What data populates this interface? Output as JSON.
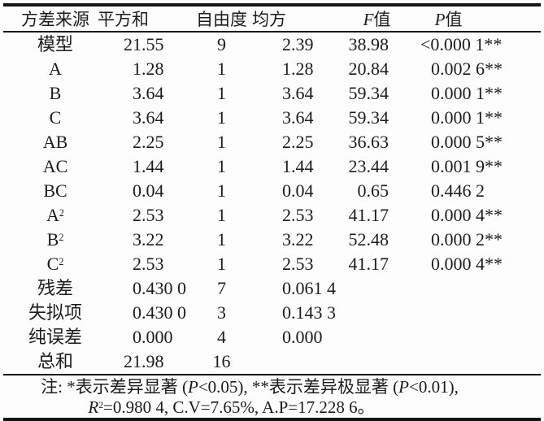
{
  "colors": {
    "ink": "#1c1c1c",
    "rule": "#141414",
    "bg": "#fdfdfd"
  },
  "table": {
    "headers": [
      {
        "id": "source",
        "runs": [
          {
            "t": "方差来源"
          }
        ]
      },
      {
        "id": "sum-of-squares",
        "runs": [
          {
            "t": "平方和"
          }
        ]
      },
      {
        "id": "degrees-freedom",
        "runs": [
          {
            "t": "自由度"
          }
        ]
      },
      {
        "id": "mean-square",
        "runs": [
          {
            "t": "均方"
          }
        ]
      },
      {
        "id": "f-value",
        "runs": [
          {
            "t": "F",
            "i": 1
          },
          {
            "t": "值"
          }
        ]
      },
      {
        "id": "p-value",
        "runs": [
          {
            "t": "P",
            "i": 1
          },
          {
            "t": "值"
          }
        ]
      }
    ],
    "rows": [
      {
        "source": "模型",
        "ss": "21.55",
        "df": "9",
        "ms": "2.39",
        "f": "38.98",
        "p": "<0.000 1**"
      },
      {
        "source": "A",
        "ss": "1.28",
        "df": "1",
        "ms": "1.28",
        "f": "20.84",
        "p": "0.002 6**"
      },
      {
        "source": "B",
        "ss": "3.64",
        "df": "1",
        "ms": "3.64",
        "f": "59.34",
        "p": "0.000 1**"
      },
      {
        "source": "C",
        "ss": "3.64",
        "df": "1",
        "ms": "3.64",
        "f": "59.34",
        "p": "0.000 1**"
      },
      {
        "source": "AB",
        "ss": "2.25",
        "df": "1",
        "ms": "2.25",
        "f": "36.63",
        "p": "0.000 5**"
      },
      {
        "source": "AC",
        "ss": "1.44",
        "df": "1",
        "ms": "1.44",
        "f": "23.44",
        "p": "0.001 9**"
      },
      {
        "source": "BC",
        "ss": "0.04",
        "df": "1",
        "ms": "0.04",
        "f": "0.65",
        "p": "0.446 2"
      },
      {
        "source": "A^2",
        "ss": "2.53",
        "df": "1",
        "ms": "2.53",
        "f": "41.17",
        "p": "0.000 4**"
      },
      {
        "source": "B^2",
        "ss": "3.22",
        "df": "1",
        "ms": "3.22",
        "f": "52.48",
        "p": "0.000 2**"
      },
      {
        "source": "C^2",
        "ss": "2.53",
        "df": "1",
        "ms": "2.53",
        "f": "41.17",
        "p": "0.000 4**"
      },
      {
        "source": "残差",
        "ss": "0.430 0",
        "df": "7",
        "ms": "0.061 4",
        "f": "",
        "p": ""
      },
      {
        "source": "失拟项",
        "ss": "0.430 0",
        "df": "3",
        "ms": "0.143 3",
        "f": "",
        "p": ""
      },
      {
        "source": "纯误差",
        "ss": "0.000",
        "df": "4",
        "ms": "0.000",
        "f": "",
        "p": ""
      },
      {
        "source": "总和",
        "ss": "21.98",
        "df": "16",
        "ms": "",
        "f": "",
        "p": ""
      }
    ]
  },
  "note": {
    "line1": [
      {
        "t": "注: *表示差异显著 ("
      },
      {
        "t": "P",
        "i": 1
      },
      {
        "t": "<0.05), **表示差异极显著 ("
      },
      {
        "t": "P",
        "i": 1
      },
      {
        "t": "<0.01),"
      }
    ],
    "line2": [
      {
        "t": "R",
        "i": 1
      },
      {
        "t": "2",
        "sup": 1
      },
      {
        "t": "=0.980 4, C.V=7.65%, A.P=17.228 6。"
      }
    ]
  }
}
